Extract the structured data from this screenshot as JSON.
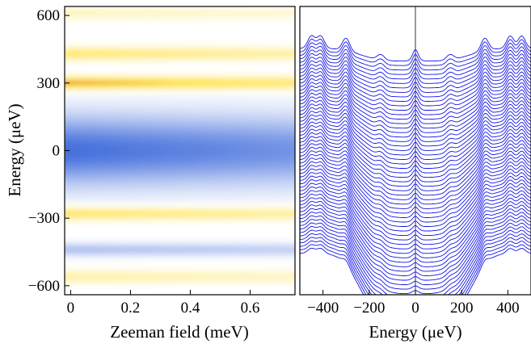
{
  "chart_data": [
    {
      "type": "heatmap",
      "xlabel": "Zeeman field (meV)",
      "ylabel": "Energy (μeV)",
      "xlim": [
        -0.02,
        0.75
      ],
      "ylim": [
        -640,
        640
      ],
      "x_ticks": [
        {
          "value": 0,
          "label": "0"
        },
        {
          "value": 0.2,
          "label": "0.2"
        },
        {
          "value": 0.4,
          "label": "0.4"
        },
        {
          "value": 0.6,
          "label": "0.6"
        }
      ],
      "y_ticks": [
        {
          "value": 600,
          "label": "600"
        },
        {
          "value": 300,
          "label": "300"
        },
        {
          "value": 0,
          "label": "0"
        },
        {
          "value": -300,
          "label": "−300"
        },
        {
          "value": -600,
          "label": "−600"
        }
      ],
      "colormap": {
        "low": "#2f5fd8",
        "mid": "#ffffff",
        "high": "#ffe24a",
        "peak": "#c8321a"
      },
      "features": [
        {
          "energy": 610,
          "field_range": [
            -0.02,
            0.75
          ],
          "level": 0.25
        },
        {
          "energy": 430,
          "field_range": [
            -0.02,
            0.75
          ],
          "level": 0.55
        },
        {
          "energy": 300,
          "field_range": [
            -0.02,
            0.75
          ],
          "level": 0.85
        },
        {
          "energy": 0,
          "field_range": [
            -0.02,
            0.75
          ],
          "level": -0.9
        },
        {
          "energy": -280,
          "field_range": [
            -0.02,
            0.75
          ],
          "level": 0.6
        },
        {
          "energy": -440,
          "field_range": [
            -0.02,
            0.75
          ],
          "level": -0.4
        },
        {
          "energy": -560,
          "field_range": [
            -0.02,
            0.75
          ],
          "level": 0.35
        }
      ]
    },
    {
      "type": "line",
      "xlabel": "Energy (μeV)",
      "ylabel": "",
      "xlim": [
        -500,
        500
      ],
      "x_ticks": [
        {
          "value": -400,
          "label": "−400"
        },
        {
          "value": -200,
          "label": "−200"
        },
        {
          "value": 0,
          "label": "0"
        },
        {
          "value": 200,
          "label": "200"
        },
        {
          "value": 400,
          "label": "400"
        }
      ],
      "series_count": 60,
      "line_color": "#1414e6",
      "description_free": true,
      "peak_energies": [
        -450,
        -410,
        -300,
        -150,
        0,
        150,
        300,
        410,
        460
      ],
      "gap_depth_first": 0.15,
      "gap_depth_last": 0.85
    }
  ]
}
